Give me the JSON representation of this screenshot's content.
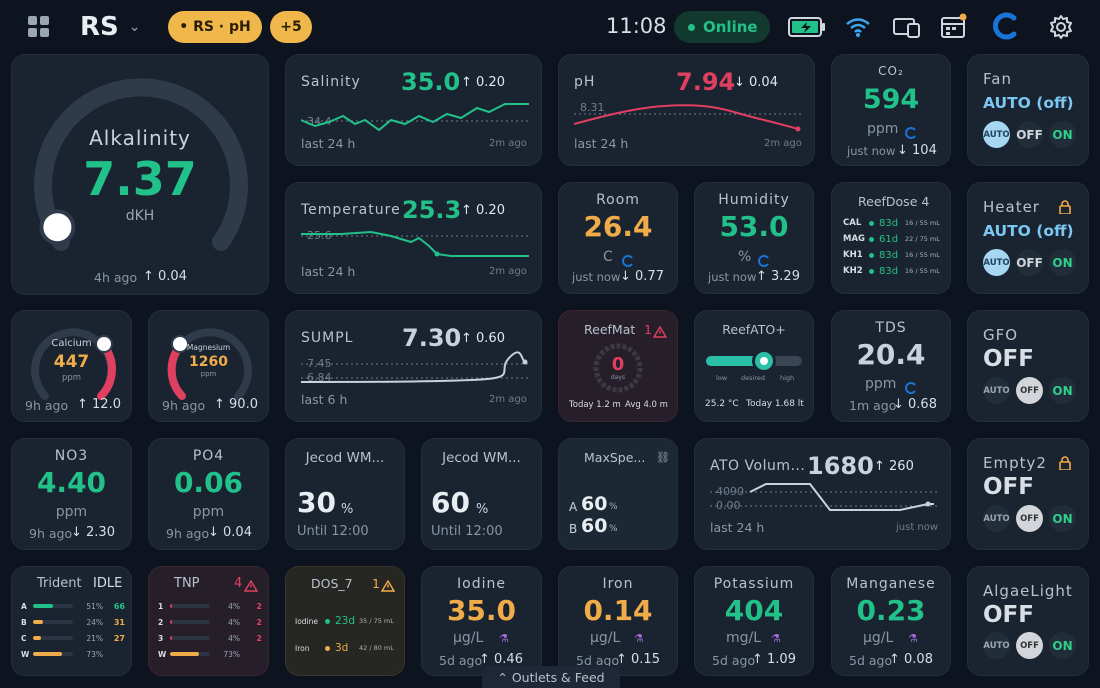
{
  "header": {
    "app_name": "RS",
    "chip_main": "• RS · pH",
    "chip_more": "+5",
    "time": "11:08",
    "status": "Online"
  },
  "alkalinity": {
    "label": "Alkalinity",
    "value": "7.37",
    "unit": "dKH",
    "ago": "4h ago",
    "delta": "↑ 0.04",
    "level": 0.05
  },
  "salinity": {
    "label": "Salinity",
    "value": "35.0",
    "delta": "↑ 0.20",
    "ref": "34.4",
    "range": "last 24 h",
    "updated": "2m ago"
  },
  "ph": {
    "label": "pH",
    "value": "7.94",
    "delta": "↓ 0.04",
    "ref": "8.31",
    "range": "last 24 h",
    "updated": "2m ago"
  },
  "co2": {
    "label": "CO₂",
    "value": "594",
    "unit": "ppm",
    "ago": "just now",
    "delta": "↓ 104"
  },
  "fan": {
    "label": "Fan",
    "state": "AUTO (off)",
    "opts": [
      "AUTO",
      "OFF",
      "ON"
    ]
  },
  "temperature": {
    "label": "Temperature",
    "value": "25.3",
    "delta": "↑ 0.20",
    "ref": "25.6",
    "range": "last 24 h",
    "updated": "2m ago"
  },
  "room": {
    "label": "Room",
    "value": "26.4",
    "unit": "C",
    "ago": "just now",
    "delta": "↓ 0.77"
  },
  "humidity": {
    "label": "Humidity",
    "value": "53.0",
    "unit": "%",
    "ago": "just now",
    "delta": "↑ 3.29"
  },
  "reefdose4": {
    "label": "ReefDose 4",
    "rows": [
      {
        "name": "CAL",
        "days": "83d",
        "amt": "16 / 55 mL"
      },
      {
        "name": "MAG",
        "days": "61d",
        "amt": "22 / 75 mL"
      },
      {
        "name": "KH1",
        "days": "83d",
        "amt": "16 / 55 mL"
      },
      {
        "name": "KH2",
        "days": "83d",
        "amt": "16 / 55 mL"
      }
    ]
  },
  "heater": {
    "label": "Heater",
    "state": "AUTO (off)",
    "opts": [
      "AUTO",
      "OFF",
      "ON"
    ]
  },
  "calcium": {
    "label": "Calcium",
    "value": "447",
    "unit": "ppm",
    "ago": "9h ago",
    "delta": "↑ 12.0",
    "level": 0.85
  },
  "magnesium": {
    "label": "Magnesium",
    "value": "1260",
    "unit": "ppm",
    "ago": "9h ago",
    "delta": "↑ 90.0",
    "level": 0.9
  },
  "sumpl": {
    "label": "SUMPL",
    "value": "7.30",
    "delta": "↑ 0.60",
    "ref1": "7.45",
    "ref2": "6.84",
    "range": "last 6 h",
    "updated": "2m ago"
  },
  "reefmat": {
    "label": "ReefMat",
    "alert": "1",
    "value": "0",
    "unit": "days",
    "today": "Today 1.2 m",
    "avg": "Avg 4.0 m"
  },
  "reefato": {
    "label": "ReefATO+",
    "low": "low",
    "desired": "desired",
    "high": "high",
    "temp": "25.2 °C",
    "today": "Today 1.68 lt"
  },
  "tds": {
    "label": "TDS",
    "value": "20.4",
    "unit": "ppm",
    "ago": "1m ago",
    "delta": "↓ 0.68"
  },
  "gfo": {
    "label": "GFO",
    "state": "OFF",
    "opts": [
      "AUTO",
      "OFF",
      "ON"
    ]
  },
  "no3": {
    "label": "NO3",
    "value": "4.40",
    "unit": "ppm",
    "ago": "9h ago",
    "delta": "↓ 2.30"
  },
  "po4": {
    "label": "PO4",
    "value": "0.06",
    "unit": "ppm",
    "ago": "9h ago",
    "delta": "↓ 0.04"
  },
  "jecod1": {
    "label": "Jecod WM...",
    "value": "30",
    "unit": "%",
    "until": "Until 12:00"
  },
  "jecod2": {
    "label": "Jecod WM...",
    "value": "60",
    "unit": "%",
    "until": "Until 12:00"
  },
  "maxspect": {
    "label": "MaxSpe...",
    "a_label": "A",
    "a_value": "60",
    "b_label": "B",
    "b_value": "60",
    "unit": "%"
  },
  "atovol": {
    "label": "ATO Volum...",
    "value": "1680",
    "delta": "↑ 260",
    "ref1": "4090",
    "ref2": "0.00",
    "range": "last 24 h",
    "updated": "just now"
  },
  "empty2": {
    "label": "Empty2",
    "state": "OFF",
    "opts": [
      "AUTO",
      "OFF",
      "ON"
    ]
  },
  "trident": {
    "label": "Trident",
    "status": "IDLE",
    "rows": [
      {
        "name": "A",
        "pct": "51%",
        "num": "66",
        "color": "#22c18a",
        "level": 0.51
      },
      {
        "name": "B",
        "pct": "24%",
        "num": "31",
        "color": "#f0ac48",
        "level": 0.24
      },
      {
        "name": "C",
        "pct": "21%",
        "num": "27",
        "color": "#f0ac48",
        "level": 0.21
      },
      {
        "name": "W",
        "pct": "73%",
        "num": "",
        "color": "#f0ac48",
        "level": 0.73
      }
    ]
  },
  "tnp": {
    "label": "TNP",
    "alert": "4",
    "rows": [
      {
        "name": "1",
        "pct": "4%",
        "num": "2",
        "level": 0.04
      },
      {
        "name": "2",
        "pct": "4%",
        "num": "2",
        "level": 0.04
      },
      {
        "name": "3",
        "pct": "4%",
        "num": "2",
        "level": 0.04
      },
      {
        "name": "W",
        "pct": "73%",
        "num": "",
        "level": 0.73
      }
    ]
  },
  "dos7": {
    "label": "DOS_7",
    "alert": "1",
    "rows": [
      {
        "name": "Iodine",
        "days": "23d",
        "amt": "35 / 75 mL",
        "color": "#22c18a"
      },
      {
        "name": "Iron",
        "days": "3d",
        "amt": "42 / 80 mL",
        "color": "#f0ac48"
      }
    ]
  },
  "iodine": {
    "label": "Iodine",
    "value": "35.0",
    "unit": "µg/L",
    "ago": "5d ago",
    "delta": "↑ 0.46"
  },
  "iron": {
    "label": "Iron",
    "value": "0.14",
    "unit": "µg/L",
    "ago": "5d ago",
    "delta": "↑ 0.15"
  },
  "potassium": {
    "label": "Potassium",
    "value": "404",
    "unit": "mg/L",
    "ago": "5d ago",
    "delta": "↑ 1.09"
  },
  "manganese": {
    "label": "Manganese",
    "value": "0.23",
    "unit": "µg/L",
    "ago": "5d ago",
    "delta": "↑ 0.08"
  },
  "algaelight": {
    "label": "AlgaeLight",
    "state": "OFF",
    "opts": [
      "AUTO",
      "OFF",
      "ON"
    ]
  },
  "footer": {
    "label": "⌃ Outlets & Feed"
  },
  "colors": {
    "accent": "#22c18a",
    "warn": "#f0ac48",
    "alert": "#e0405f",
    "bg": "#0d1420",
    "card": "#1a2330"
  }
}
